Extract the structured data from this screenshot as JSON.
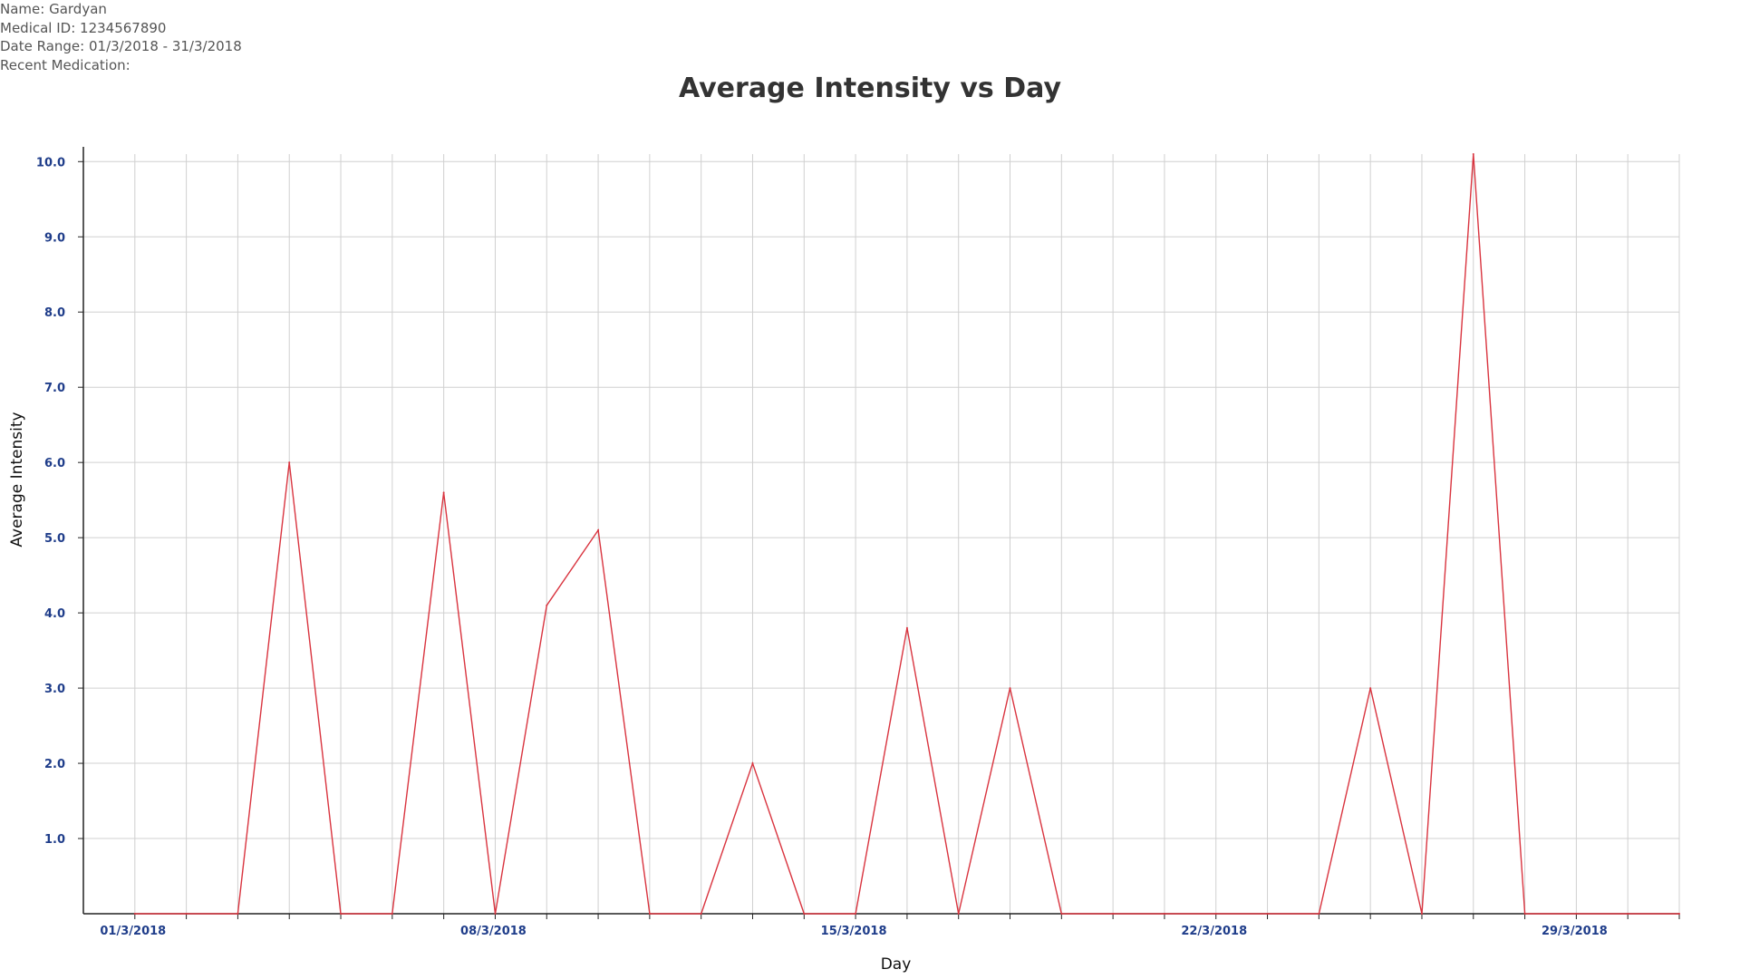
{
  "patient": {
    "name_line": "Name: Gardyan",
    "id_line": "Medical ID: 1234567890",
    "range_line": "Date Range: 01/3/2018 - 31/3/2018",
    "medication_line": "Recent Medication:"
  },
  "chart_data": {
    "type": "line",
    "title": "Average Intensity vs Day",
    "xlabel": "Day",
    "ylabel": "Average Intensity",
    "x": [
      "01/3/2018",
      "02/3/2018",
      "03/3/2018",
      "04/3/2018",
      "05/3/2018",
      "06/3/2018",
      "07/3/2018",
      "08/3/2018",
      "09/3/2018",
      "10/3/2018",
      "11/3/2018",
      "12/3/2018",
      "13/3/2018",
      "14/3/2018",
      "15/3/2018",
      "16/3/2018",
      "17/3/2018",
      "18/3/2018",
      "19/3/2018",
      "20/3/2018",
      "21/3/2018",
      "22/3/2018",
      "23/3/2018",
      "24/3/2018",
      "25/3/2018",
      "26/3/2018",
      "27/3/2018",
      "28/3/2018",
      "29/3/2018",
      "30/3/2018",
      "31/3/2018"
    ],
    "series": [
      {
        "values": [
          0,
          0,
          0,
          6.0,
          0,
          0,
          5.6,
          0,
          4.1,
          5.1,
          0,
          0,
          2.0,
          0,
          0,
          3.8,
          0,
          3.0,
          0,
          0,
          0,
          0,
          0,
          0,
          3.0,
          0,
          10.1,
          0,
          0,
          0,
          0
        ],
        "color": "#d9343f"
      }
    ],
    "ylim": [
      0,
      10.1
    ],
    "yticks": [
      "1.0",
      "2.0",
      "3.0",
      "4.0",
      "5.0",
      "6.0",
      "7.0",
      "8.0",
      "9.0",
      "10.0"
    ],
    "xtick_labels": [
      "01/3/2018",
      "08/3/2018",
      "15/3/2018",
      "22/3/2018",
      "29/3/2018"
    ],
    "grid": true,
    "legend": "none",
    "colors": {
      "line": "#d9343f",
      "grid": "#d0d0d0",
      "tick": "#1f3d8a",
      "axis": "#222222"
    }
  }
}
